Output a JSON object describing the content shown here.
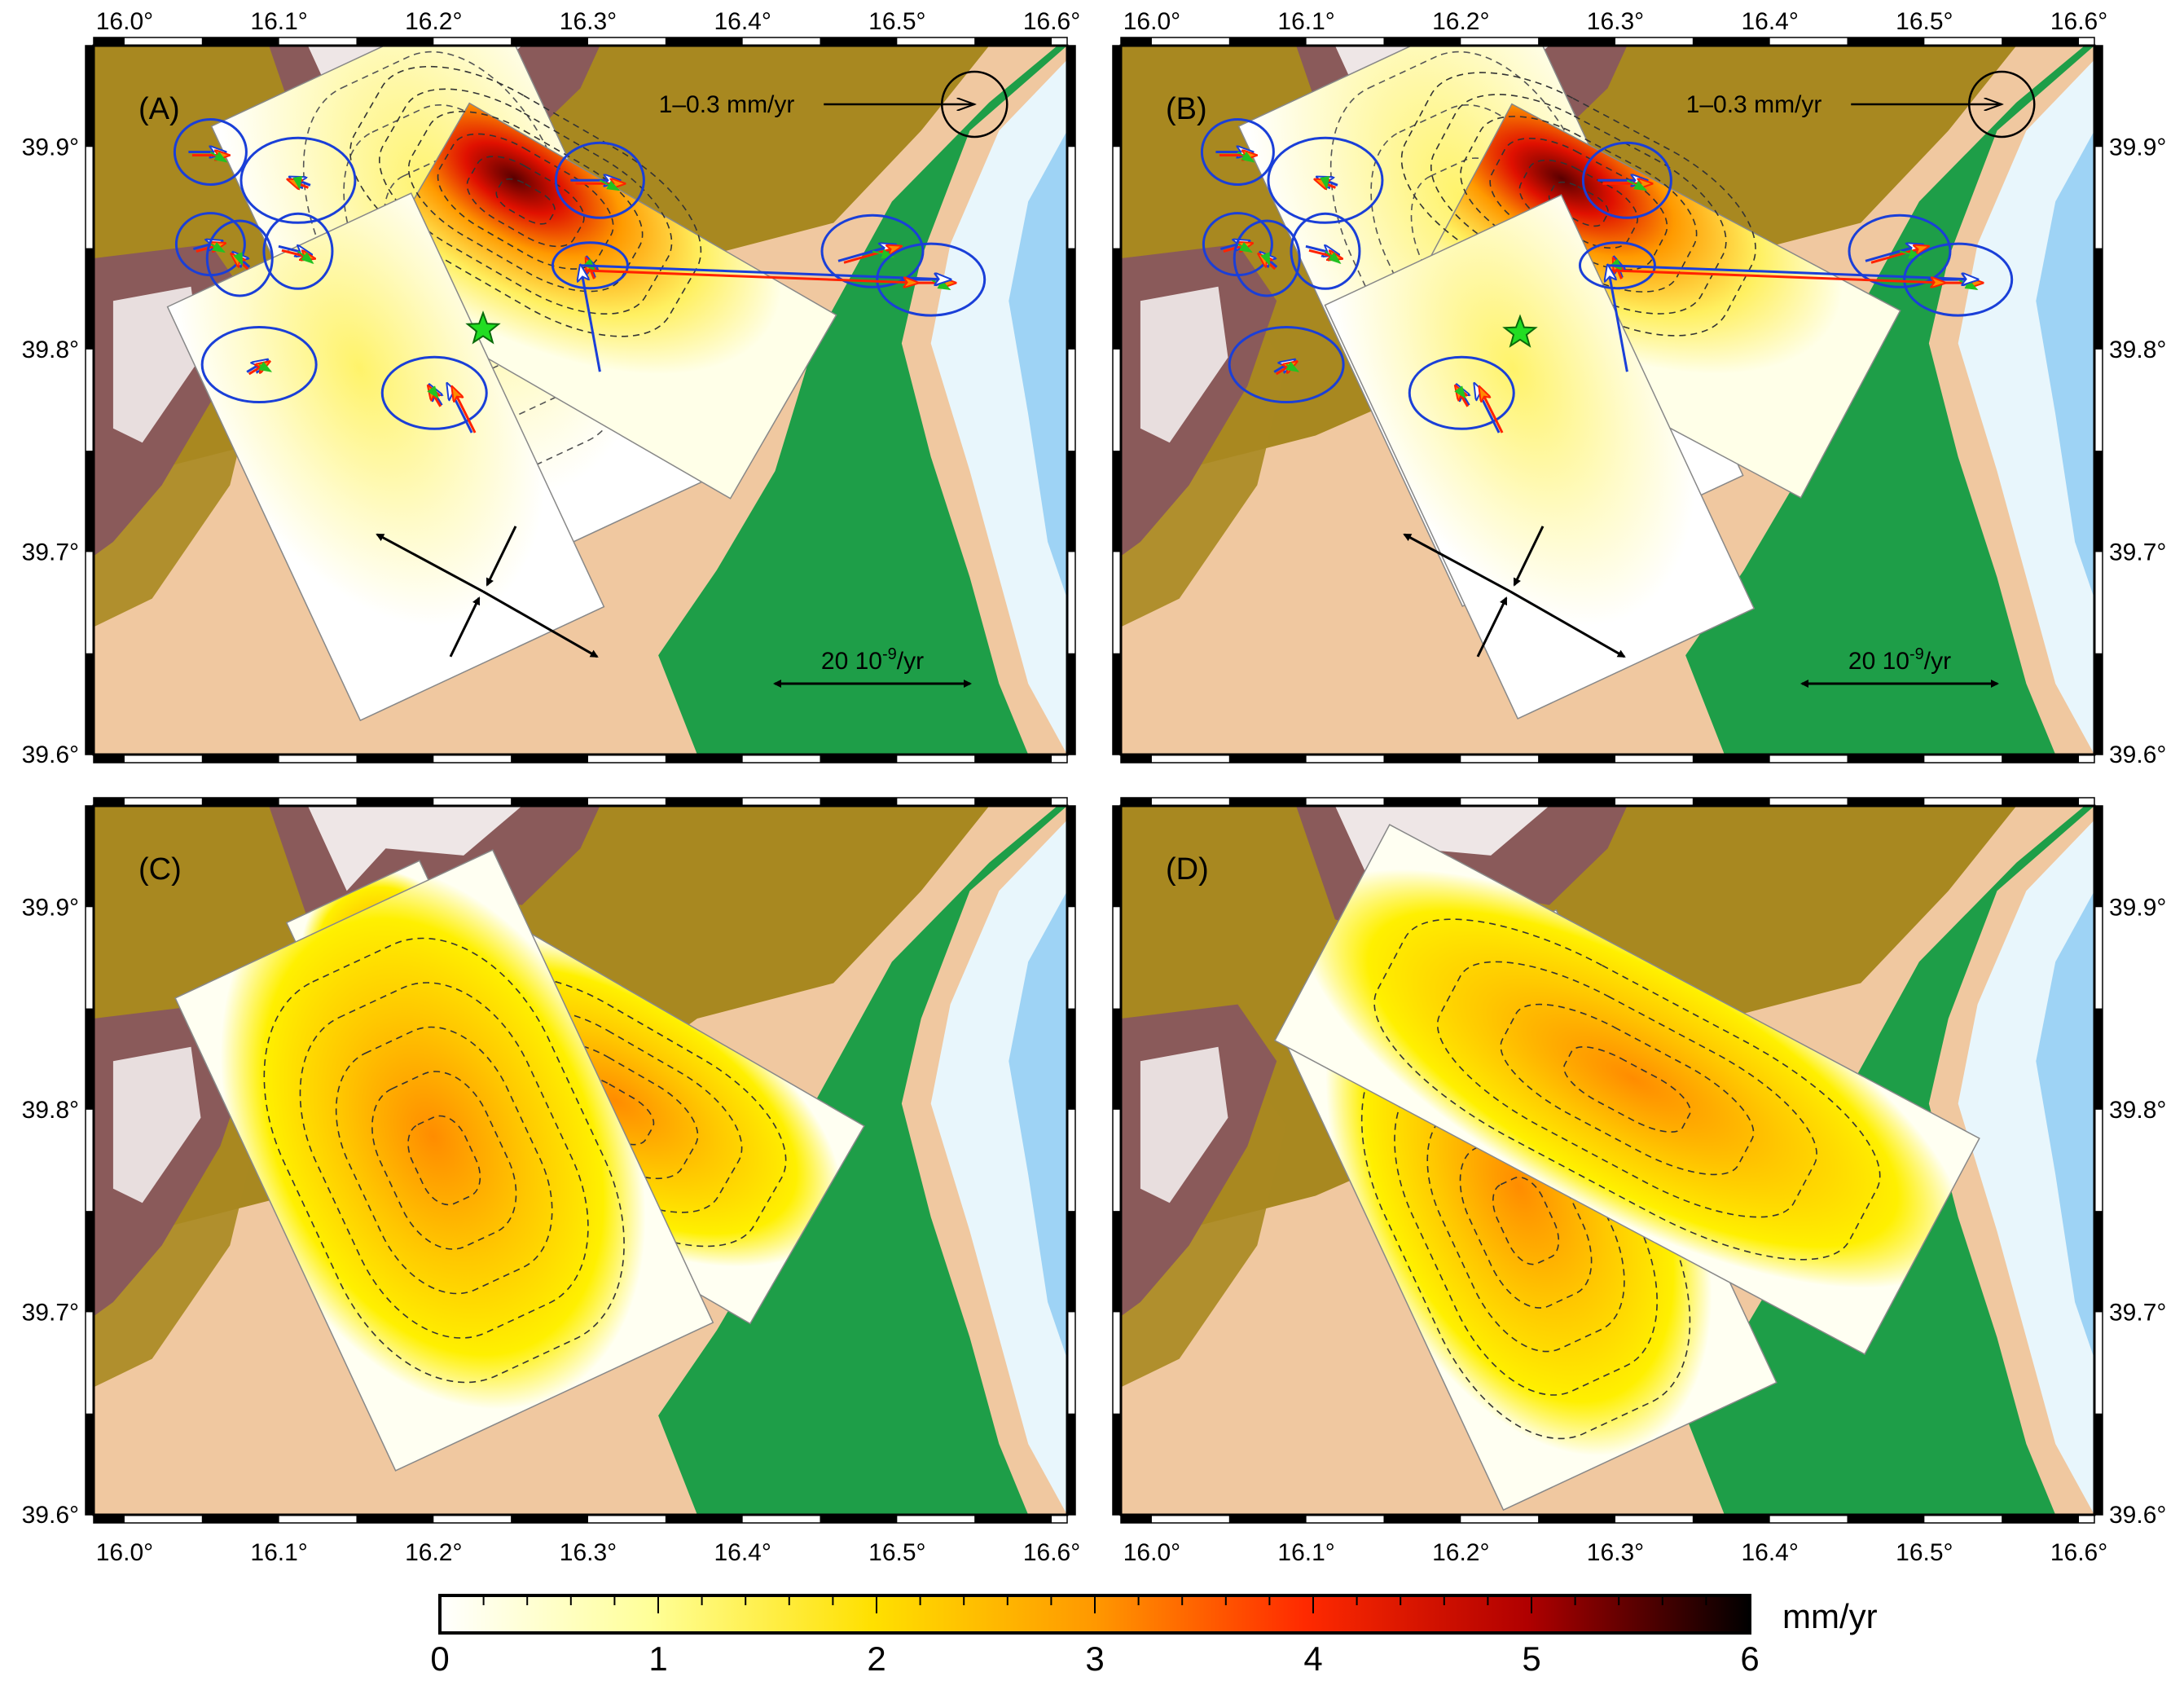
{
  "lon_ticks": [
    "16.0°",
    "16.1°",
    "16.2°",
    "16.3°",
    "16.4°",
    "16.5°",
    "16.6°"
  ],
  "lat_ticks": [
    "39.6°",
    "39.7°",
    "39.8°",
    "39.9°"
  ],
  "lon_values": [
    16.0,
    16.1,
    16.2,
    16.3,
    16.4,
    16.5,
    16.6
  ],
  "lat_values": [
    39.6,
    39.7,
    39.8,
    39.9
  ],
  "map_extent": {
    "lon_min": 15.98,
    "lon_max": 16.61,
    "lat_min": 39.6,
    "lat_max": 39.95
  },
  "panels": [
    {
      "label": "(A)",
      "velocity_scale_label": "1–0.3 mm/yr",
      "strain_scale_label": "20 10",
      "strain_scale_exp": "-9",
      "strain_scale_unit": "/yr"
    },
    {
      "label": "(B)",
      "velocity_scale_label": "1–0.3 mm/yr",
      "strain_scale_label": "20 10",
      "strain_scale_exp": "-9",
      "strain_scale_unit": "/yr"
    },
    {
      "label": "(C)"
    },
    {
      "label": "(D)"
    }
  ],
  "colorbar": {
    "unit": "mm/yr",
    "tick_labels": [
      "0",
      "1",
      "2",
      "3",
      "4",
      "5",
      "6"
    ],
    "range": [
      0,
      6
    ],
    "colors": [
      "#ffffff",
      "#ffff99",
      "#ffe000",
      "#ff9800",
      "#ff2a00",
      "#b00000",
      "#000000"
    ]
  },
  "colors": {
    "lowland": "#f0c8a0",
    "hills": "#a88820",
    "mountains": "#8a5a5a",
    "peaks": "#ffffff",
    "coastal_plain": "#1e9e48",
    "sea_shallow": "#e8f6fc",
    "sea_deep": "#9ed3f5",
    "observed_vector": "#1a3fd8",
    "model_vector_red": "#ff2200",
    "model_vector_green": "#22c222",
    "epicenter_star": "#22dd22"
  }
}
